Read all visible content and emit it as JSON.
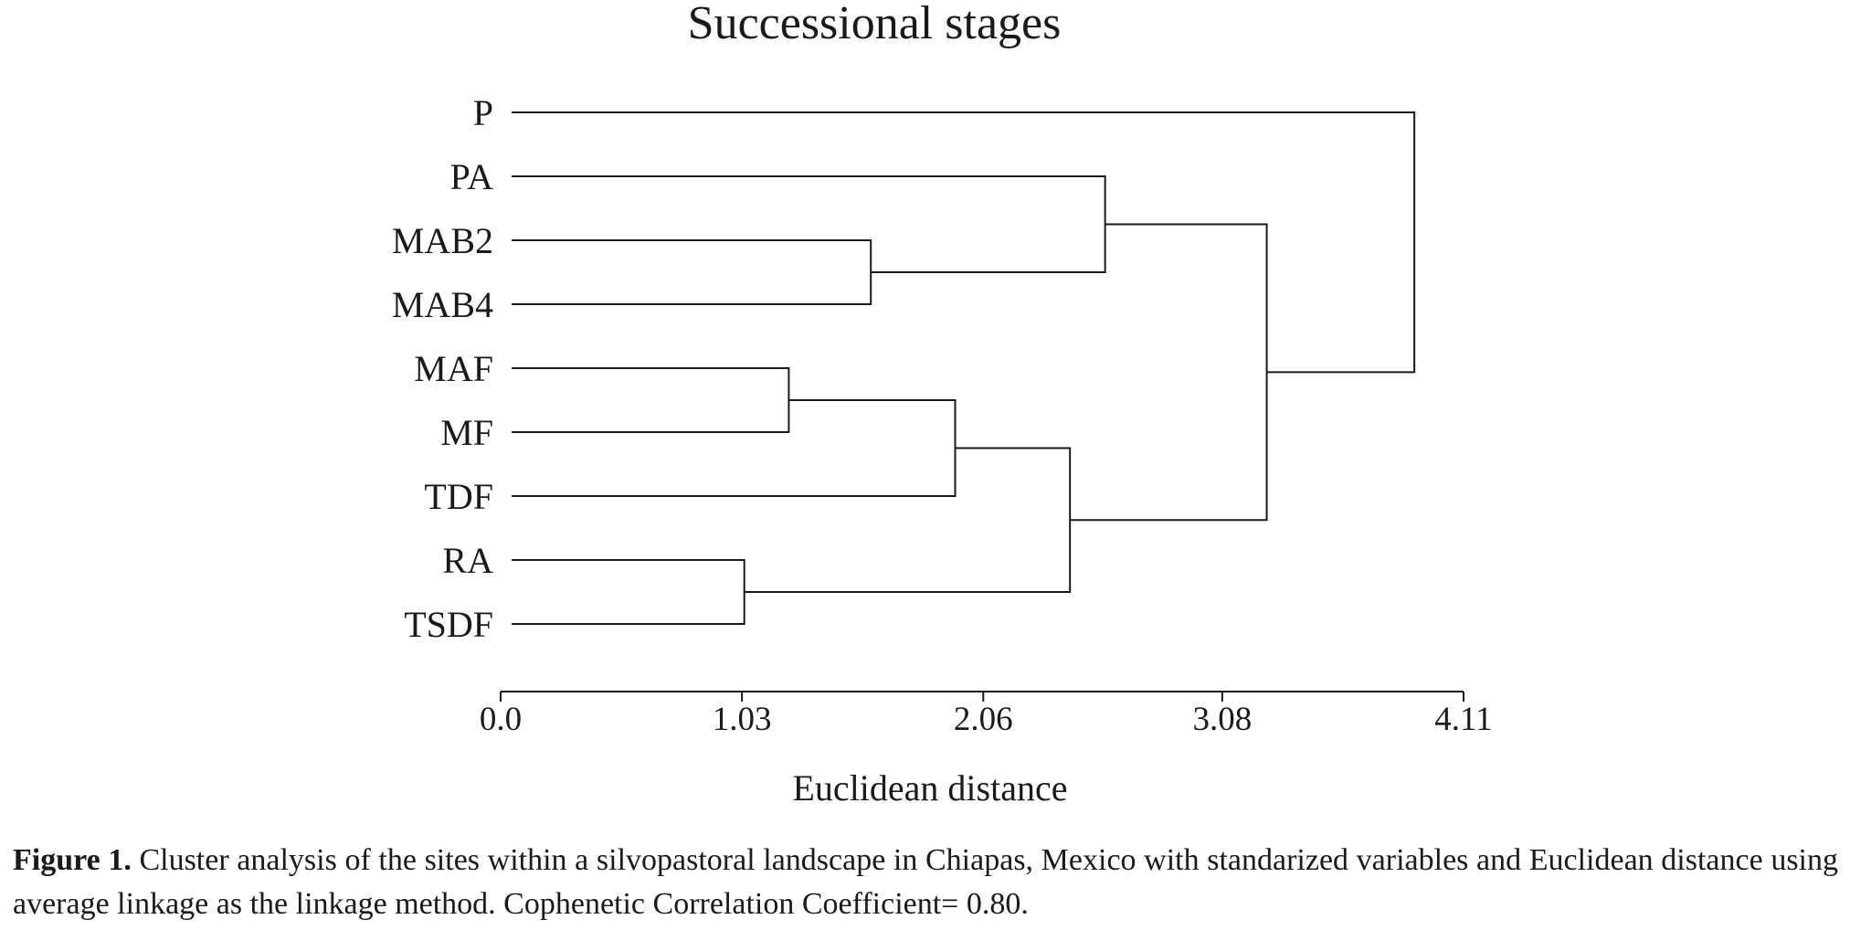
{
  "chart_data": {
    "type": "dendrogram",
    "title": "Successional stages",
    "xlabel": "Euclidean distance",
    "ylabel": "",
    "xlim": [
      0.0,
      4.11
    ],
    "xticks": [
      0.0,
      1.03,
      2.06,
      3.08,
      4.11
    ],
    "xtick_labels": [
      "0.0",
      "1.03",
      "2.06",
      "3.08",
      "4.11"
    ],
    "leaves": [
      "P",
      "PA",
      "MAB2",
      "MAB4",
      "MAF",
      "MF",
      "TDF",
      "RA",
      "TSDF"
    ],
    "linkage": "average",
    "merges": [
      {
        "id": "c1",
        "children": [
          "RA",
          "TSDF"
        ],
        "height": 1.04
      },
      {
        "id": "c2",
        "children": [
          "MAF",
          "MF"
        ],
        "height": 1.23
      },
      {
        "id": "c3",
        "children": [
          "MAB2",
          "MAB4"
        ],
        "height": 1.58
      },
      {
        "id": "c4",
        "children": [
          "c2",
          "TDF"
        ],
        "height": 1.94
      },
      {
        "id": "c5",
        "children": [
          "c4",
          "c1"
        ],
        "height": 2.43
      },
      {
        "id": "c6",
        "children": [
          "PA",
          "c3"
        ],
        "height": 2.58
      },
      {
        "id": "c7",
        "children": [
          "c6",
          "c5"
        ],
        "height": 3.27
      },
      {
        "id": "c8",
        "children": [
          "P",
          "c7"
        ],
        "height": 3.9
      }
    ]
  },
  "caption": {
    "label": "Figure 1.",
    "text": " Cluster analysis of the sites within a silvopastoral landscape in Chiapas, Mexico with standarized variables and Euclidean distance using average linkage as the linkage method. Cophenetic Correlation Coefficient= 0.80."
  }
}
